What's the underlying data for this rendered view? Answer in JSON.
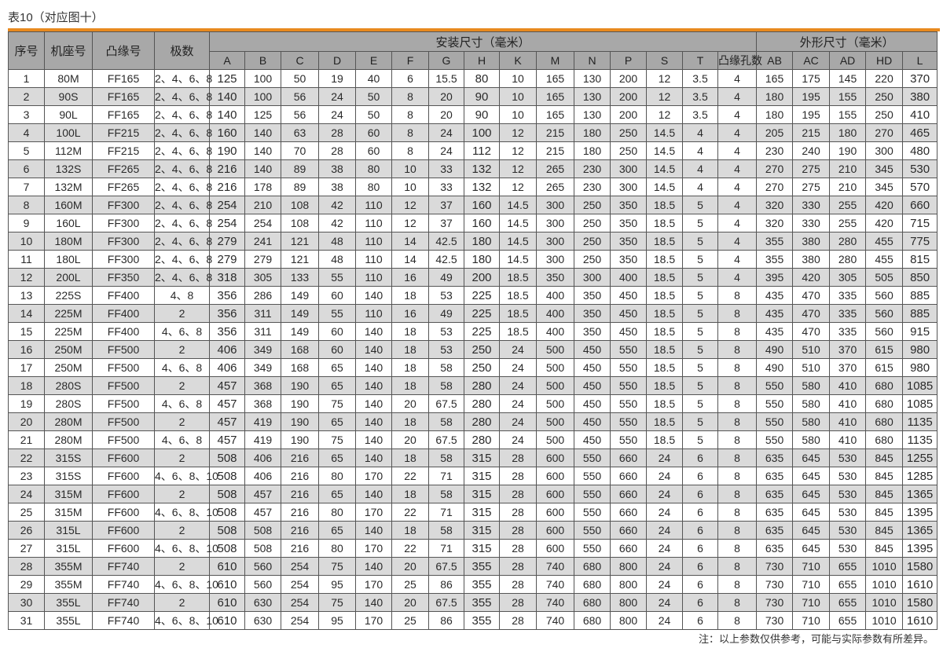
{
  "title": "表10（对应图十）",
  "accent_color": "#e8891e",
  "header": {
    "fixed": [
      "序号",
      "机座号",
      "凸缘号",
      "极数"
    ],
    "group_install": "安装尺寸（毫米）",
    "group_outline": "外形尺寸（毫米）",
    "install_cols": [
      "A",
      "B",
      "C",
      "D",
      "E",
      "F",
      "G",
      "H",
      "K",
      "M",
      "N",
      "P",
      "S",
      "T",
      "凸缘孔数"
    ],
    "outline_cols": [
      "AB",
      "AC",
      "AD",
      "HD",
      "L"
    ]
  },
  "rows": [
    [
      "1",
      "80M",
      "FF165",
      "2、4、6、8",
      "125",
      "100",
      "50",
      "19",
      "40",
      "6",
      "15.5",
      "80",
      "10",
      "165",
      "130",
      "200",
      "12",
      "3.5",
      "4",
      "165",
      "175",
      "145",
      "220",
      "370"
    ],
    [
      "2",
      "90S",
      "FF165",
      "2、4、6、8",
      "140",
      "100",
      "56",
      "24",
      "50",
      "8",
      "20",
      "90",
      "10",
      "165",
      "130",
      "200",
      "12",
      "3.5",
      "4",
      "180",
      "195",
      "155",
      "250",
      "380"
    ],
    [
      "3",
      "90L",
      "FF165",
      "2、4、6、8",
      "140",
      "125",
      "56",
      "24",
      "50",
      "8",
      "20",
      "90",
      "10",
      "165",
      "130",
      "200",
      "12",
      "3.5",
      "4",
      "180",
      "195",
      "155",
      "250",
      "410"
    ],
    [
      "4",
      "100L",
      "FF215",
      "2、4、6、8",
      "160",
      "140",
      "63",
      "28",
      "60",
      "8",
      "24",
      "100",
      "12",
      "215",
      "180",
      "250",
      "14.5",
      "4",
      "4",
      "205",
      "215",
      "180",
      "270",
      "465"
    ],
    [
      "5",
      "112M",
      "FF215",
      "2、4、6、8",
      "190",
      "140",
      "70",
      "28",
      "60",
      "8",
      "24",
      "112",
      "12",
      "215",
      "180",
      "250",
      "14.5",
      "4",
      "4",
      "230",
      "240",
      "190",
      "300",
      "480"
    ],
    [
      "6",
      "132S",
      "FF265",
      "2、4、6、8",
      "216",
      "140",
      "89",
      "38",
      "80",
      "10",
      "33",
      "132",
      "12",
      "265",
      "230",
      "300",
      "14.5",
      "4",
      "4",
      "270",
      "275",
      "210",
      "345",
      "530"
    ],
    [
      "7",
      "132M",
      "FF265",
      "2、4、6、8",
      "216",
      "178",
      "89",
      "38",
      "80",
      "10",
      "33",
      "132",
      "12",
      "265",
      "230",
      "300",
      "14.5",
      "4",
      "4",
      "270",
      "275",
      "210",
      "345",
      "570"
    ],
    [
      "8",
      "160M",
      "FF300",
      "2、4、6、8",
      "254",
      "210",
      "108",
      "42",
      "110",
      "12",
      "37",
      "160",
      "14.5",
      "300",
      "250",
      "350",
      "18.5",
      "5",
      "4",
      "320",
      "330",
      "255",
      "420",
      "660"
    ],
    [
      "9",
      "160L",
      "FF300",
      "2、4、6、8",
      "254",
      "254",
      "108",
      "42",
      "110",
      "12",
      "37",
      "160",
      "14.5",
      "300",
      "250",
      "350",
      "18.5",
      "5",
      "4",
      "320",
      "330",
      "255",
      "420",
      "715"
    ],
    [
      "10",
      "180M",
      "FF300",
      "2、4、6、8",
      "279",
      "241",
      "121",
      "48",
      "110",
      "14",
      "42.5",
      "180",
      "14.5",
      "300",
      "250",
      "350",
      "18.5",
      "5",
      "4",
      "355",
      "380",
      "280",
      "455",
      "775"
    ],
    [
      "11",
      "180L",
      "FF300",
      "2、4、6、8",
      "279",
      "279",
      "121",
      "48",
      "110",
      "14",
      "42.5",
      "180",
      "14.5",
      "300",
      "250",
      "350",
      "18.5",
      "5",
      "4",
      "355",
      "380",
      "280",
      "455",
      "815"
    ],
    [
      "12",
      "200L",
      "FF350",
      "2、4、6、8",
      "318",
      "305",
      "133",
      "55",
      "110",
      "16",
      "49",
      "200",
      "18.5",
      "350",
      "300",
      "400",
      "18.5",
      "5",
      "4",
      "395",
      "420",
      "305",
      "505",
      "850"
    ],
    [
      "13",
      "225S",
      "FF400",
      "4、8",
      "356",
      "286",
      "149",
      "60",
      "140",
      "18",
      "53",
      "225",
      "18.5",
      "400",
      "350",
      "450",
      "18.5",
      "5",
      "8",
      "435",
      "470",
      "335",
      "560",
      "885"
    ],
    [
      "14",
      "225M",
      "FF400",
      "2",
      "356",
      "311",
      "149",
      "55",
      "110",
      "16",
      "49",
      "225",
      "18.5",
      "400",
      "350",
      "450",
      "18.5",
      "5",
      "8",
      "435",
      "470",
      "335",
      "560",
      "885"
    ],
    [
      "15",
      "225M",
      "FF400",
      "4、6、8",
      "356",
      "311",
      "149",
      "60",
      "140",
      "18",
      "53",
      "225",
      "18.5",
      "400",
      "350",
      "450",
      "18.5",
      "5",
      "8",
      "435",
      "470",
      "335",
      "560",
      "915"
    ],
    [
      "16",
      "250M",
      "FF500",
      "2",
      "406",
      "349",
      "168",
      "60",
      "140",
      "18",
      "53",
      "250",
      "24",
      "500",
      "450",
      "550",
      "18.5",
      "5",
      "8",
      "490",
      "510",
      "370",
      "615",
      "980"
    ],
    [
      "17",
      "250M",
      "FF500",
      "4、6、8",
      "406",
      "349",
      "168",
      "65",
      "140",
      "18",
      "58",
      "250",
      "24",
      "500",
      "450",
      "550",
      "18.5",
      "5",
      "8",
      "490",
      "510",
      "370",
      "615",
      "980"
    ],
    [
      "18",
      "280S",
      "FF500",
      "2",
      "457",
      "368",
      "190",
      "65",
      "140",
      "18",
      "58",
      "280",
      "24",
      "500",
      "450",
      "550",
      "18.5",
      "5",
      "8",
      "550",
      "580",
      "410",
      "680",
      "1085"
    ],
    [
      "19",
      "280S",
      "FF500",
      "4、6、8",
      "457",
      "368",
      "190",
      "75",
      "140",
      "20",
      "67.5",
      "280",
      "24",
      "500",
      "450",
      "550",
      "18.5",
      "5",
      "8",
      "550",
      "580",
      "410",
      "680",
      "1085"
    ],
    [
      "20",
      "280M",
      "FF500",
      "2",
      "457",
      "419",
      "190",
      "65",
      "140",
      "18",
      "58",
      "280",
      "24",
      "500",
      "450",
      "550",
      "18.5",
      "5",
      "8",
      "550",
      "580",
      "410",
      "680",
      "1135"
    ],
    [
      "21",
      "280M",
      "FF500",
      "4、6、8",
      "457",
      "419",
      "190",
      "75",
      "140",
      "20",
      "67.5",
      "280",
      "24",
      "500",
      "450",
      "550",
      "18.5",
      "5",
      "8",
      "550",
      "580",
      "410",
      "680",
      "1135"
    ],
    [
      "22",
      "315S",
      "FF600",
      "2",
      "508",
      "406",
      "216",
      "65",
      "140",
      "18",
      "58",
      "315",
      "28",
      "600",
      "550",
      "660",
      "24",
      "6",
      "8",
      "635",
      "645",
      "530",
      "845",
      "1255"
    ],
    [
      "23",
      "315S",
      "FF600",
      "4、6、8、10",
      "508",
      "406",
      "216",
      "80",
      "170",
      "22",
      "71",
      "315",
      "28",
      "600",
      "550",
      "660",
      "24",
      "6",
      "8",
      "635",
      "645",
      "530",
      "845",
      "1285"
    ],
    [
      "24",
      "315M",
      "FF600",
      "2",
      "508",
      "457",
      "216",
      "65",
      "140",
      "18",
      "58",
      "315",
      "28",
      "600",
      "550",
      "660",
      "24",
      "6",
      "8",
      "635",
      "645",
      "530",
      "845",
      "1365"
    ],
    [
      "25",
      "315M",
      "FF600",
      "4、6、8、10",
      "508",
      "457",
      "216",
      "80",
      "170",
      "22",
      "71",
      "315",
      "28",
      "600",
      "550",
      "660",
      "24",
      "6",
      "8",
      "635",
      "645",
      "530",
      "845",
      "1395"
    ],
    [
      "26",
      "315L",
      "FF600",
      "2",
      "508",
      "508",
      "216",
      "65",
      "140",
      "18",
      "58",
      "315",
      "28",
      "600",
      "550",
      "660",
      "24",
      "6",
      "8",
      "635",
      "645",
      "530",
      "845",
      "1365"
    ],
    [
      "27",
      "315L",
      "FF600",
      "4、6、8、10",
      "508",
      "508",
      "216",
      "80",
      "170",
      "22",
      "71",
      "315",
      "28",
      "600",
      "550",
      "660",
      "24",
      "6",
      "8",
      "635",
      "645",
      "530",
      "845",
      "1395"
    ],
    [
      "28",
      "355M",
      "FF740",
      "2",
      "610",
      "560",
      "254",
      "75",
      "140",
      "20",
      "67.5",
      "355",
      "28",
      "740",
      "680",
      "800",
      "24",
      "6",
      "8",
      "730",
      "710",
      "655",
      "1010",
      "1580"
    ],
    [
      "29",
      "355M",
      "FF740",
      "4、6、8、10",
      "610",
      "560",
      "254",
      "95",
      "170",
      "25",
      "86",
      "355",
      "28",
      "740",
      "680",
      "800",
      "24",
      "6",
      "8",
      "730",
      "710",
      "655",
      "1010",
      "1610"
    ],
    [
      "30",
      "355L",
      "FF740",
      "2",
      "610",
      "630",
      "254",
      "75",
      "140",
      "20",
      "67.5",
      "355",
      "28",
      "740",
      "680",
      "800",
      "24",
      "6",
      "8",
      "730",
      "710",
      "655",
      "1010",
      "1580"
    ],
    [
      "31",
      "355L",
      "FF740",
      "4、6、8、10",
      "610",
      "630",
      "254",
      "95",
      "170",
      "25",
      "86",
      "355",
      "28",
      "740",
      "680",
      "800",
      "24",
      "6",
      "8",
      "730",
      "710",
      "655",
      "1010",
      "1610"
    ]
  ],
  "note": "注：以上参数仅供参考，可能与实际参数有所差异。"
}
